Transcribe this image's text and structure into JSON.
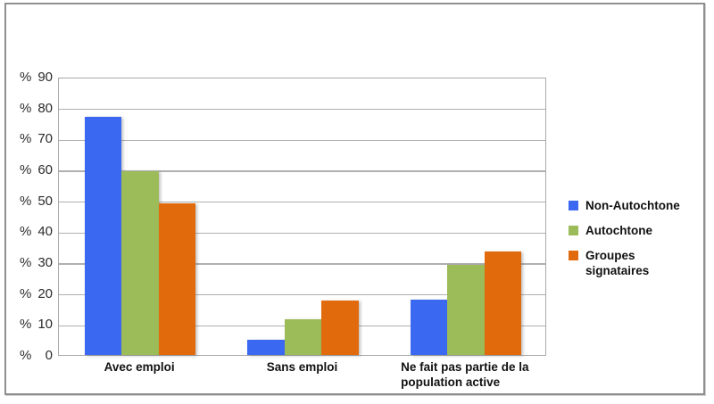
{
  "chart_data": {
    "type": "bar",
    "title": "",
    "xlabel": "",
    "ylabel": "%",
    "categories": [
      "Avec emploi",
      "Sans emploi",
      "Ne fait pas partie de la\npopulation active"
    ],
    "series": [
      {
        "name": "Non-Autochtone",
        "legend_label": "Non-Autochtone",
        "color": "#3A68F0",
        "values": [
          77,
          5,
          18
        ]
      },
      {
        "name": "Autochtone",
        "legend_label": "Autochtone",
        "color": "#9CBB59",
        "values": [
          59.5,
          11.5,
          29
        ]
      },
      {
        "name": "Groupes signataires",
        "legend_label": "Groupes\nsignataires",
        "color": "#E16B0C",
        "values": [
          49,
          17.5,
          33.5
        ]
      }
    ],
    "y_axis": {
      "min": 0,
      "max": 90,
      "tick_step": 10,
      "tick_prefix": "%",
      "tick_values": [
        90,
        80,
        70,
        60,
        50,
        40,
        30,
        20,
        10,
        0
      ]
    },
    "grid": true,
    "legend_position": "right",
    "colors": {
      "gridline": "#b0b0b0",
      "plot_border": "#a8a8a8",
      "frame_border": "#8f8f8f",
      "tick_text": "#2b2b2b",
      "label_text": "#111111",
      "background": "#ffffff"
    }
  }
}
